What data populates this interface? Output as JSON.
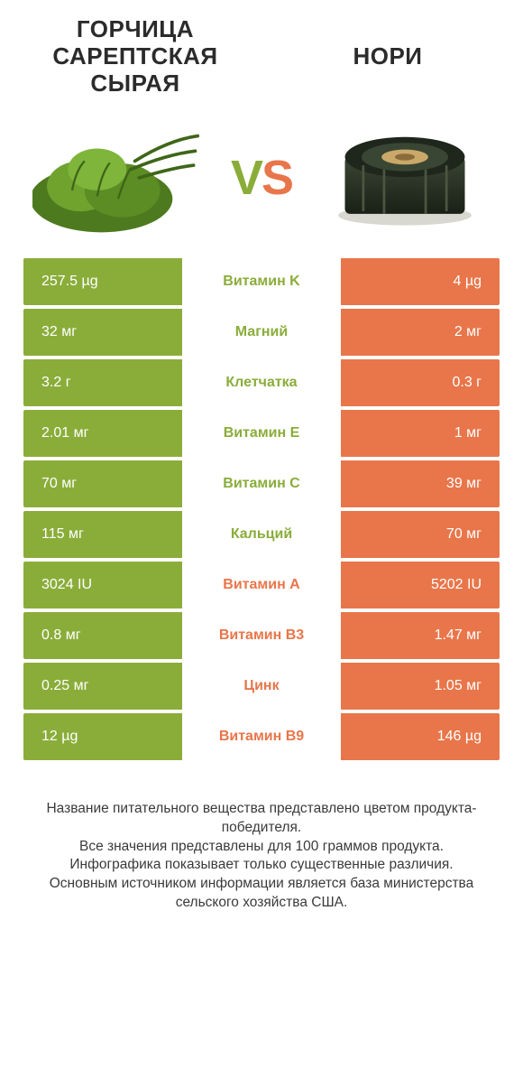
{
  "colors": {
    "green": "#8aad3a",
    "orange": "#e8764a",
    "text": "#333333",
    "white": "#ffffff"
  },
  "header": {
    "left_title": "ГОРЧИЦА САРЕПТСКАЯ СЫРАЯ",
    "right_title": "НОРИ",
    "vs_v": "V",
    "vs_s": "S"
  },
  "rows": [
    {
      "left": "257.5 µg",
      "label": "Витамин K",
      "right": "4 µg",
      "winner": "left"
    },
    {
      "left": "32 мг",
      "label": "Магний",
      "right": "2 мг",
      "winner": "left"
    },
    {
      "left": "3.2 г",
      "label": "Клетчатка",
      "right": "0.3 г",
      "winner": "left"
    },
    {
      "left": "2.01 мг",
      "label": "Витамин E",
      "right": "1 мг",
      "winner": "left"
    },
    {
      "left": "70 мг",
      "label": "Витамин C",
      "right": "39 мг",
      "winner": "left"
    },
    {
      "left": "115 мг",
      "label": "Кальций",
      "right": "70 мг",
      "winner": "left"
    },
    {
      "left": "3024 IU",
      "label": "Витамин A",
      "right": "5202 IU",
      "winner": "right"
    },
    {
      "left": "0.8 мг",
      "label": "Витамин B3",
      "right": "1.47 мг",
      "winner": "right"
    },
    {
      "left": "0.25 мг",
      "label": "Цинк",
      "right": "1.05 мг",
      "winner": "right"
    },
    {
      "left": "12 µg",
      "label": "Витамин B9",
      "right": "146 µg",
      "winner": "right"
    }
  ],
  "footer": {
    "line1": "Название питательного вещества представлено цветом продукта-победителя.",
    "line2": "Все значения представлены для 100 граммов продукта.",
    "line3": "Инфографика показывает только существенные различия.",
    "line4": "Основным источником информации является база министерства сельского хозяйства США."
  }
}
